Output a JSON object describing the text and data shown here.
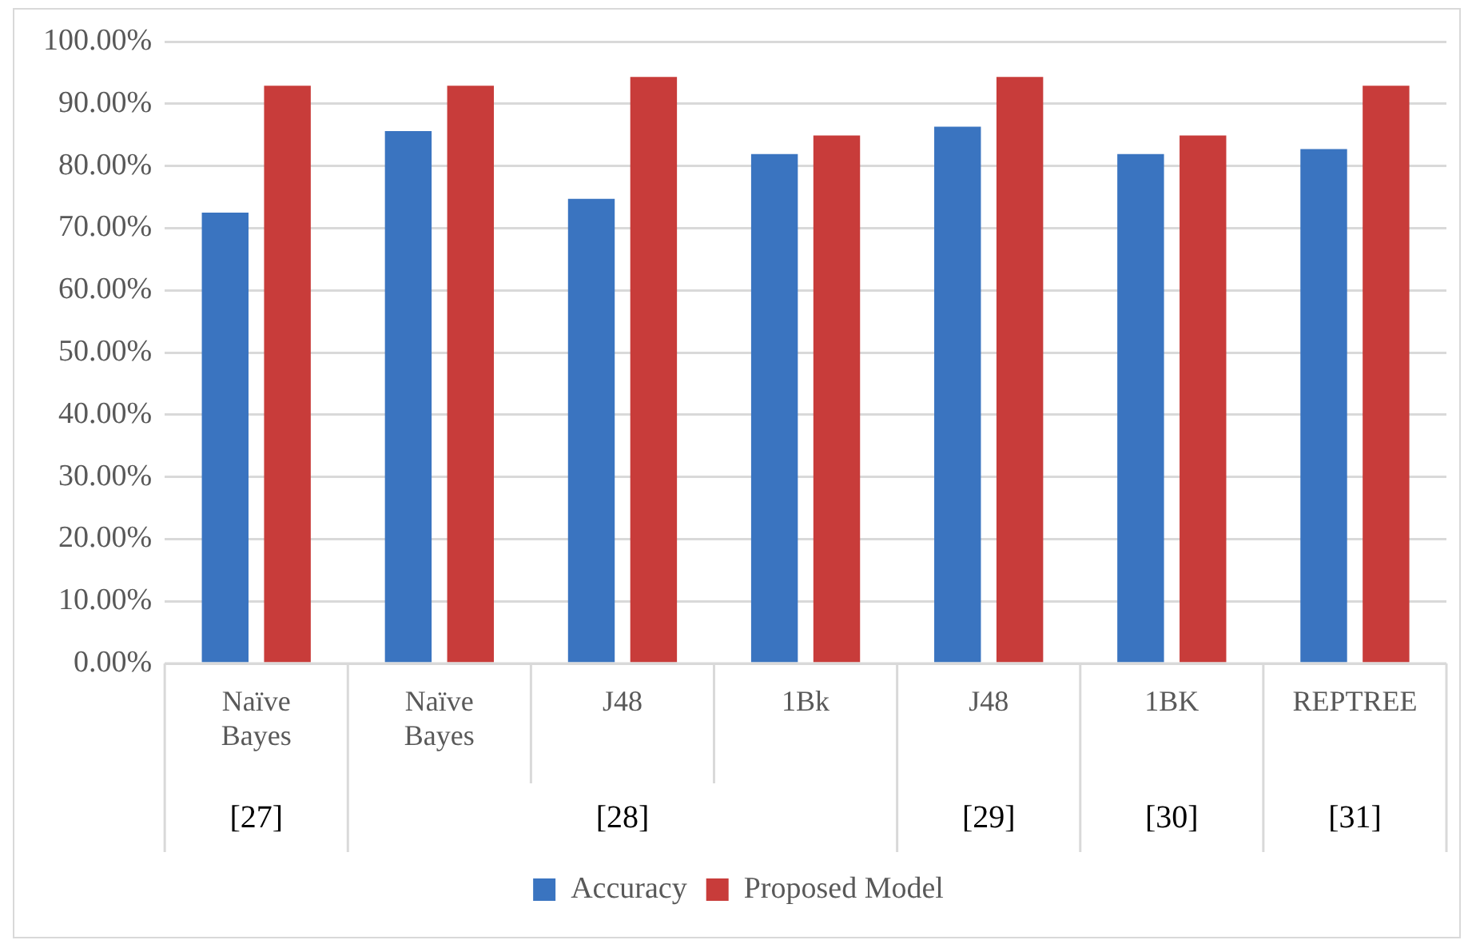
{
  "chart_data": {
    "type": "bar",
    "categories": [
      "Naïve Bayes",
      "Naïve Bayes",
      "J48",
      "1Bk",
      "J48",
      "1BK",
      "REPTREE"
    ],
    "series": [
      {
        "name": "Accuracy",
        "color": "#3a74c0",
        "values": [
          72.5,
          85.6,
          74.7,
          81.9,
          86.3,
          81.9,
          82.7
        ]
      },
      {
        "name": "Proposed Model",
        "color": "#c83c3a",
        "values": [
          92.9,
          92.9,
          94.3,
          84.9,
          94.3,
          84.9,
          92.9
        ]
      }
    ],
    "ylim": [
      0,
      100
    ],
    "yticks": [
      {
        "value": 0,
        "label": "0.00%"
      },
      {
        "value": 10,
        "label": "10.00%"
      },
      {
        "value": 20,
        "label": "20.00%"
      },
      {
        "value": 30,
        "label": "30.00%"
      },
      {
        "value": 40,
        "label": "40.00%"
      },
      {
        "value": 50,
        "label": "50.00%"
      },
      {
        "value": 60,
        "label": "60.00%"
      },
      {
        "value": 70,
        "label": "70.00%"
      },
      {
        "value": 80,
        "label": "80.00%"
      },
      {
        "value": 90,
        "label": "90.00%"
      },
      {
        "value": 100,
        "label": "100.00%"
      }
    ],
    "grid": "y",
    "legend": "bottom",
    "annotations": [
      "[27]",
      "[28]",
      "[29]",
      "[30]",
      "[31]"
    ]
  }
}
